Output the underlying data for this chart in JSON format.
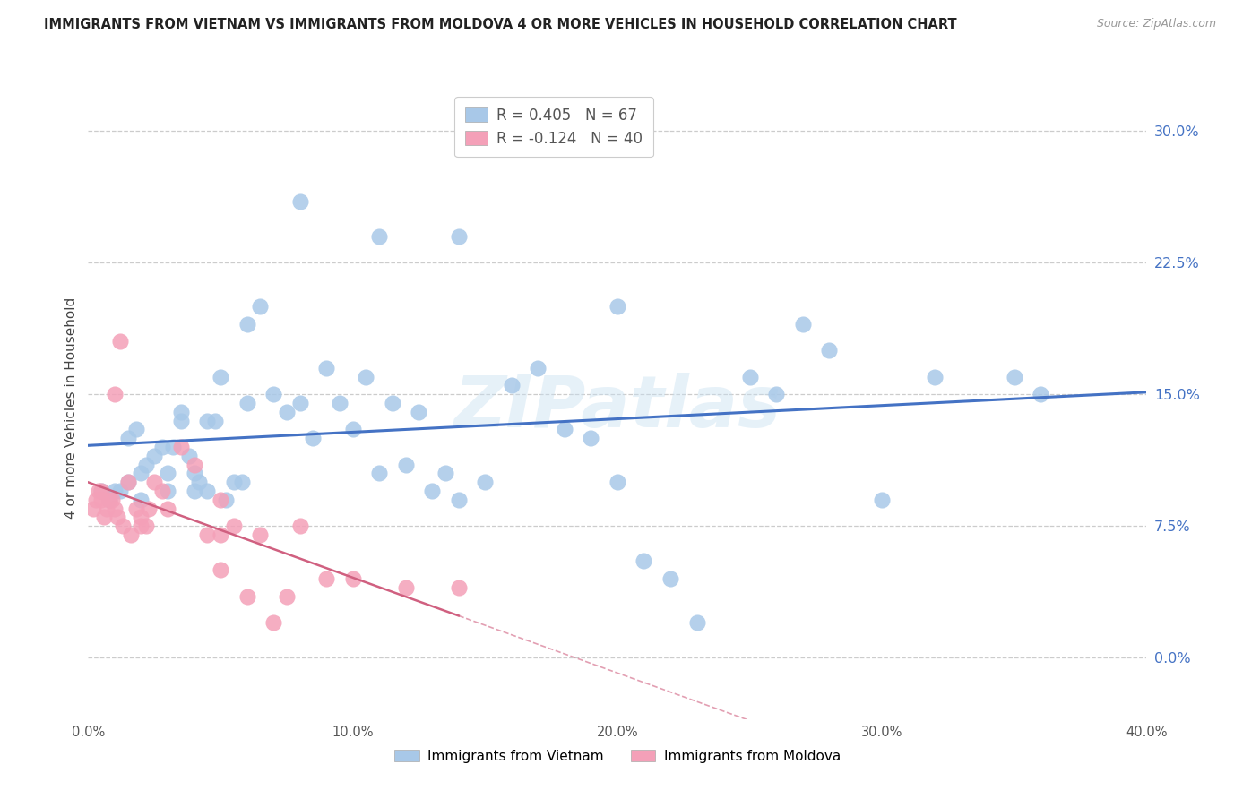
{
  "title": "IMMIGRANTS FROM VIETNAM VS IMMIGRANTS FROM MOLDOVA 4 OR MORE VEHICLES IN HOUSEHOLD CORRELATION CHART",
  "source": "Source: ZipAtlas.com",
  "ylabel": "4 or more Vehicles in Household",
  "xlim": [
    0.0,
    40.0
  ],
  "ylim": [
    -3.5,
    32.0
  ],
  "yticks": [
    0.0,
    7.5,
    15.0,
    22.5,
    30.0
  ],
  "xticks": [
    0.0,
    10.0,
    20.0,
    30.0,
    40.0
  ],
  "r_vietnam": 0.405,
  "n_vietnam": 67,
  "r_moldova": -0.124,
  "n_moldova": 40,
  "color_vietnam": "#a8c8e8",
  "color_moldova": "#f4a0b8",
  "trendline_vietnam_color": "#4472c4",
  "trendline_moldova_color": "#d06080",
  "watermark": "ZIPatlas",
  "vietnam_x": [
    0.5,
    0.8,
    1.0,
    1.2,
    1.5,
    1.5,
    1.8,
    2.0,
    2.0,
    2.2,
    2.5,
    2.8,
    3.0,
    3.0,
    3.2,
    3.5,
    3.5,
    3.8,
    4.0,
    4.0,
    4.2,
    4.5,
    4.5,
    4.8,
    5.0,
    5.2,
    5.5,
    5.8,
    6.0,
    6.0,
    6.5,
    7.0,
    7.5,
    8.0,
    8.5,
    9.0,
    9.5,
    10.0,
    10.5,
    11.0,
    11.5,
    12.0,
    12.5,
    13.0,
    13.5,
    14.0,
    15.0,
    16.0,
    17.0,
    18.0,
    19.0,
    20.0,
    21.0,
    22.0,
    23.0,
    25.0,
    26.0,
    27.0,
    28.0,
    30.0,
    32.0,
    35.0,
    36.0,
    8.0,
    11.0,
    14.0,
    20.0
  ],
  "vietnam_y": [
    9.5,
    9.0,
    9.5,
    9.5,
    10.0,
    12.5,
    13.0,
    9.0,
    10.5,
    11.0,
    11.5,
    12.0,
    9.5,
    10.5,
    12.0,
    13.5,
    14.0,
    11.5,
    9.5,
    10.5,
    10.0,
    9.5,
    13.5,
    13.5,
    16.0,
    9.0,
    10.0,
    10.0,
    14.5,
    19.0,
    20.0,
    15.0,
    14.0,
    14.5,
    12.5,
    16.5,
    14.5,
    13.0,
    16.0,
    10.5,
    14.5,
    11.0,
    14.0,
    9.5,
    10.5,
    9.0,
    10.0,
    15.5,
    16.5,
    13.0,
    12.5,
    10.0,
    5.5,
    4.5,
    2.0,
    16.0,
    15.0,
    19.0,
    17.5,
    9.0,
    16.0,
    16.0,
    15.0,
    26.0,
    24.0,
    24.0,
    20.0
  ],
  "moldova_x": [
    0.2,
    0.3,
    0.4,
    0.5,
    0.5,
    0.6,
    0.7,
    0.8,
    0.9,
    1.0,
    1.0,
    1.1,
    1.2,
    1.3,
    1.5,
    1.6,
    1.8,
    2.0,
    2.0,
    2.2,
    2.3,
    2.5,
    2.8,
    3.0,
    3.5,
    4.0,
    4.5,
    5.0,
    5.5,
    6.0,
    7.0,
    7.5,
    8.0,
    9.0,
    10.0,
    12.0,
    14.0,
    5.0,
    5.0,
    6.5
  ],
  "moldova_y": [
    8.5,
    9.0,
    9.5,
    9.0,
    9.5,
    8.0,
    8.5,
    9.0,
    9.0,
    15.0,
    8.5,
    8.0,
    18.0,
    7.5,
    10.0,
    7.0,
    8.5,
    8.0,
    7.5,
    7.5,
    8.5,
    10.0,
    9.5,
    8.5,
    12.0,
    11.0,
    7.0,
    9.0,
    7.5,
    3.5,
    2.0,
    3.5,
    7.5,
    4.5,
    4.5,
    4.0,
    4.0,
    5.0,
    7.0,
    7.0
  ]
}
